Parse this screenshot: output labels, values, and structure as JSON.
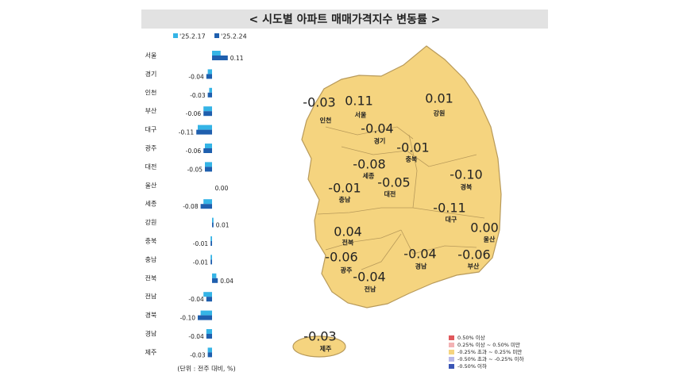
{
  "chart_data": {
    "type": "bar",
    "orientation": "horizontal",
    "title": "< 시도별 아파트 매매가격지수 변동률 >",
    "note": "(단위 : 전주 대비, %)",
    "categories": [
      "서울",
      "경기",
      "인천",
      "부산",
      "대구",
      "광주",
      "대전",
      "울산",
      "세종",
      "강원",
      "충북",
      "충남",
      "전북",
      "전남",
      "경북",
      "경남",
      "제주"
    ],
    "series": [
      {
        "name": "'25.2.17",
        "color": "#35b4e6",
        "values": [
          0.06,
          -0.03,
          -0.02,
          -0.06,
          -0.1,
          -0.05,
          -0.05,
          0.0,
          -0.06,
          0.01,
          -0.01,
          -0.01,
          0.03,
          -0.06,
          -0.08,
          -0.04,
          -0.03
        ]
      },
      {
        "name": "'25.2.24",
        "color": "#1f5fae",
        "values": [
          0.11,
          -0.04,
          -0.03,
          -0.06,
          -0.11,
          -0.06,
          -0.05,
          0.0,
          -0.08,
          0.01,
          -0.01,
          -0.01,
          0.04,
          -0.04,
          -0.1,
          -0.04,
          -0.03
        ],
        "value_labels": [
          "0.11",
          "-0.04",
          "-0.03",
          "-0.06",
          "-0.11",
          "-0.06",
          "-0.05",
          "0.00",
          "-0.08",
          "0.01",
          "-0.01",
          "-0.01",
          "0.04",
          "-0.04",
          "-0.10",
          "-0.04",
          "-0.03"
        ]
      }
    ],
    "xlim": [
      -0.16,
      0.16
    ]
  },
  "map": {
    "regions": [
      {
        "name": "인천",
        "value": "-0.03"
      },
      {
        "name": "서울",
        "value": "0.11"
      },
      {
        "name": "강원",
        "value": "0.01"
      },
      {
        "name": "경기",
        "value": "-0.04"
      },
      {
        "name": "충북",
        "value": "-0.01"
      },
      {
        "name": "세종",
        "value": "-0.08"
      },
      {
        "name": "경북",
        "value": "-0.10"
      },
      {
        "name": "충남",
        "value": "-0.01"
      },
      {
        "name": "대전",
        "value": "-0.05"
      },
      {
        "name": "대구",
        "value": "-0.11"
      },
      {
        "name": "울산",
        "value": "0.00"
      },
      {
        "name": "전북",
        "value": "0.04"
      },
      {
        "name": "광주",
        "value": "-0.06"
      },
      {
        "name": "경남",
        "value": "-0.04"
      },
      {
        "name": "부산",
        "value": "-0.06"
      },
      {
        "name": "전남",
        "value": "-0.04"
      },
      {
        "name": "제주",
        "value": "-0.03"
      }
    ],
    "legend": [
      {
        "label": "0.50% 이상",
        "color": "#e0585c"
      },
      {
        "label": "0.25% 이상 ~ 0.50% 미만",
        "color": "#f3b2b4"
      },
      {
        "label": "-0.25% 초과 ~ 0.25% 미만",
        "color": "#f5d47f"
      },
      {
        "label": "-0.50% 초과 ~ -0.25% 이하",
        "color": "#b8b8e8"
      },
      {
        "label": "-0.50% 이하",
        "color": "#3a55b5"
      }
    ],
    "fill": "#f5d47f"
  }
}
